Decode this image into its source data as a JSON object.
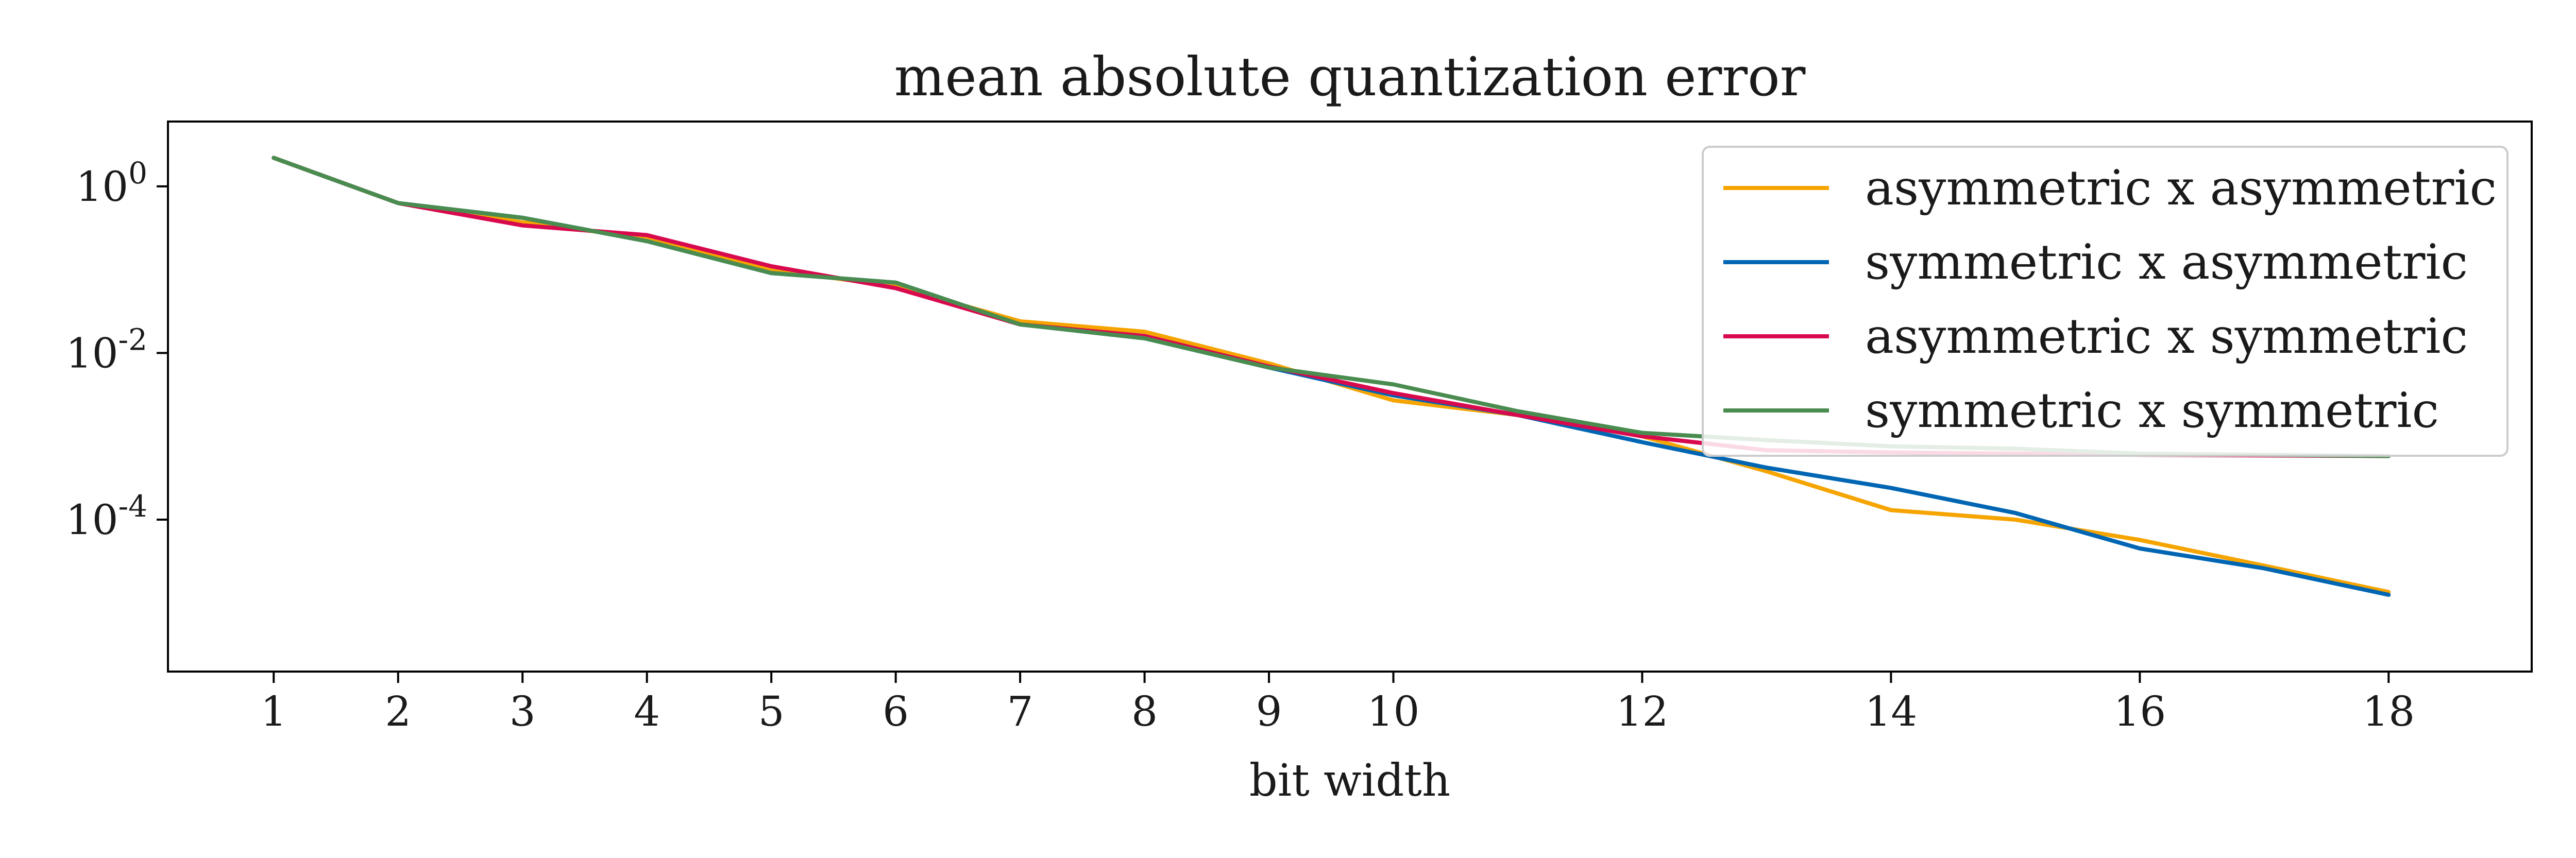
{
  "chart_data": {
    "type": "line",
    "title": "mean absolute quantization error",
    "xlabel": "bit width",
    "ylabel": "",
    "yscale": "log",
    "xlim": [
      0.15,
      19.15
    ],
    "ylim": [
      1.5e-06,
      6.0
    ],
    "x_ticks": [
      1,
      2,
      3,
      4,
      5,
      6,
      7,
      8,
      9,
      10,
      12,
      14,
      16,
      18
    ],
    "y_ticks": [
      {
        "value": 1,
        "base": "10",
        "exp": "0"
      },
      {
        "value": 0.01,
        "base": "10",
        "exp": "-2"
      },
      {
        "value": 0.0001,
        "base": "10",
        "exp": "-4"
      }
    ],
    "grid": false,
    "legend_position": "top-right",
    "x": [
      1,
      2,
      3,
      4,
      5,
      6,
      7,
      8,
      9,
      10,
      11,
      12,
      13,
      14,
      15,
      16,
      17,
      18
    ],
    "series": [
      {
        "name": "asymmetric x asymmetric",
        "color": "#F5A400",
        "values": [
          2.2,
          0.63,
          0.37,
          0.24,
          0.1,
          0.063,
          0.024,
          0.018,
          0.0075,
          0.0027,
          0.0018,
          0.001,
          0.00038,
          0.00013,
          0.0001,
          5.7e-05,
          2.8e-05,
          1.35e-05
        ]
      },
      {
        "name": "symmetric x asymmetric",
        "color": "#0066B3",
        "values": [
          2.2,
          0.63,
          0.42,
          0.22,
          0.091,
          0.07,
          0.022,
          0.015,
          0.0067,
          0.0031,
          0.0018,
          0.00085,
          0.00042,
          0.00024,
          0.00012,
          4.5e-05,
          2.6e-05,
          1.25e-05
        ]
      },
      {
        "name": "asymmetric x symmetric",
        "color": "#D9094E",
        "values": [
          2.2,
          0.63,
          0.34,
          0.26,
          0.11,
          0.06,
          0.022,
          0.016,
          0.0069,
          0.0033,
          0.0018,
          0.001,
          0.00068,
          0.00064,
          0.00062,
          0.0006,
          0.00059,
          0.00058
        ]
      },
      {
        "name": "symmetric x symmetric",
        "color": "#4A8C50",
        "values": [
          2.2,
          0.63,
          0.42,
          0.22,
          0.091,
          0.07,
          0.022,
          0.015,
          0.0067,
          0.0042,
          0.002,
          0.0011,
          0.0009,
          0.00076,
          0.00071,
          0.00062,
          0.0006,
          0.00058
        ]
      }
    ]
  }
}
